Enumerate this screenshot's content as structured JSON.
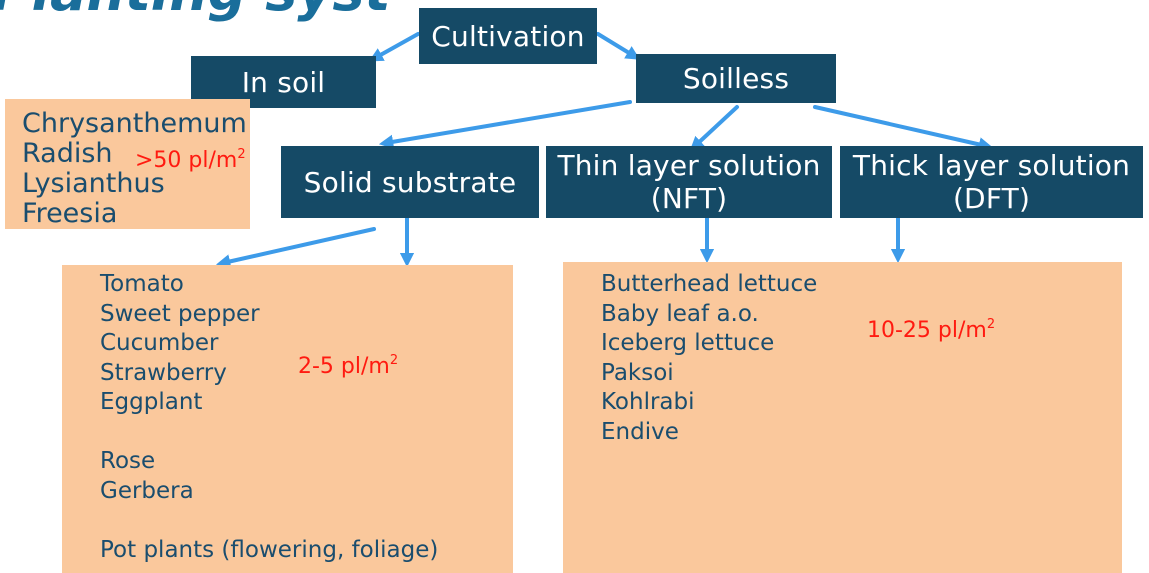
{
  "header": {
    "cut_title": "Planting syst"
  },
  "nodes": {
    "cultivation": "Cultivation",
    "in_soil": "In soil",
    "soilless": "Soilless",
    "solid": "Solid substrate",
    "thin": [
      "Thin layer solution",
      "(NFT)"
    ],
    "thick": [
      "Thick layer solution",
      "(DFT)"
    ]
  },
  "soil_panel": {
    "items": [
      "Chrysanthemum",
      "Radish",
      "Lysianthus",
      "Freesia"
    ],
    "density": {
      "value": ">50 pl/m",
      "sup": "2"
    }
  },
  "substrate_panel": {
    "items": [
      "Tomato",
      "Sweet pepper",
      "Cucumber",
      "Strawberry",
      "Eggplant",
      "",
      "Rose",
      "Gerbera",
      "",
      "Pot plants (flowering, foliage)"
    ],
    "density": {
      "value": "2-5 pl/m",
      "sup": "2"
    }
  },
  "solution_panel": {
    "items": [
      "Butterhead lettuce",
      "Baby leaf a.o.",
      "Iceberg lettuce",
      "Paksoi",
      "Kohlrabi",
      "Endive"
    ],
    "density": {
      "value": "10-25 pl/m",
      "sup": "2"
    }
  },
  "colors": {
    "node": "#154a66",
    "panel": "#fac89c",
    "arrow": "#3d9be9",
    "panel_text": "#1a4d6e",
    "density": "#ff1a10"
  }
}
